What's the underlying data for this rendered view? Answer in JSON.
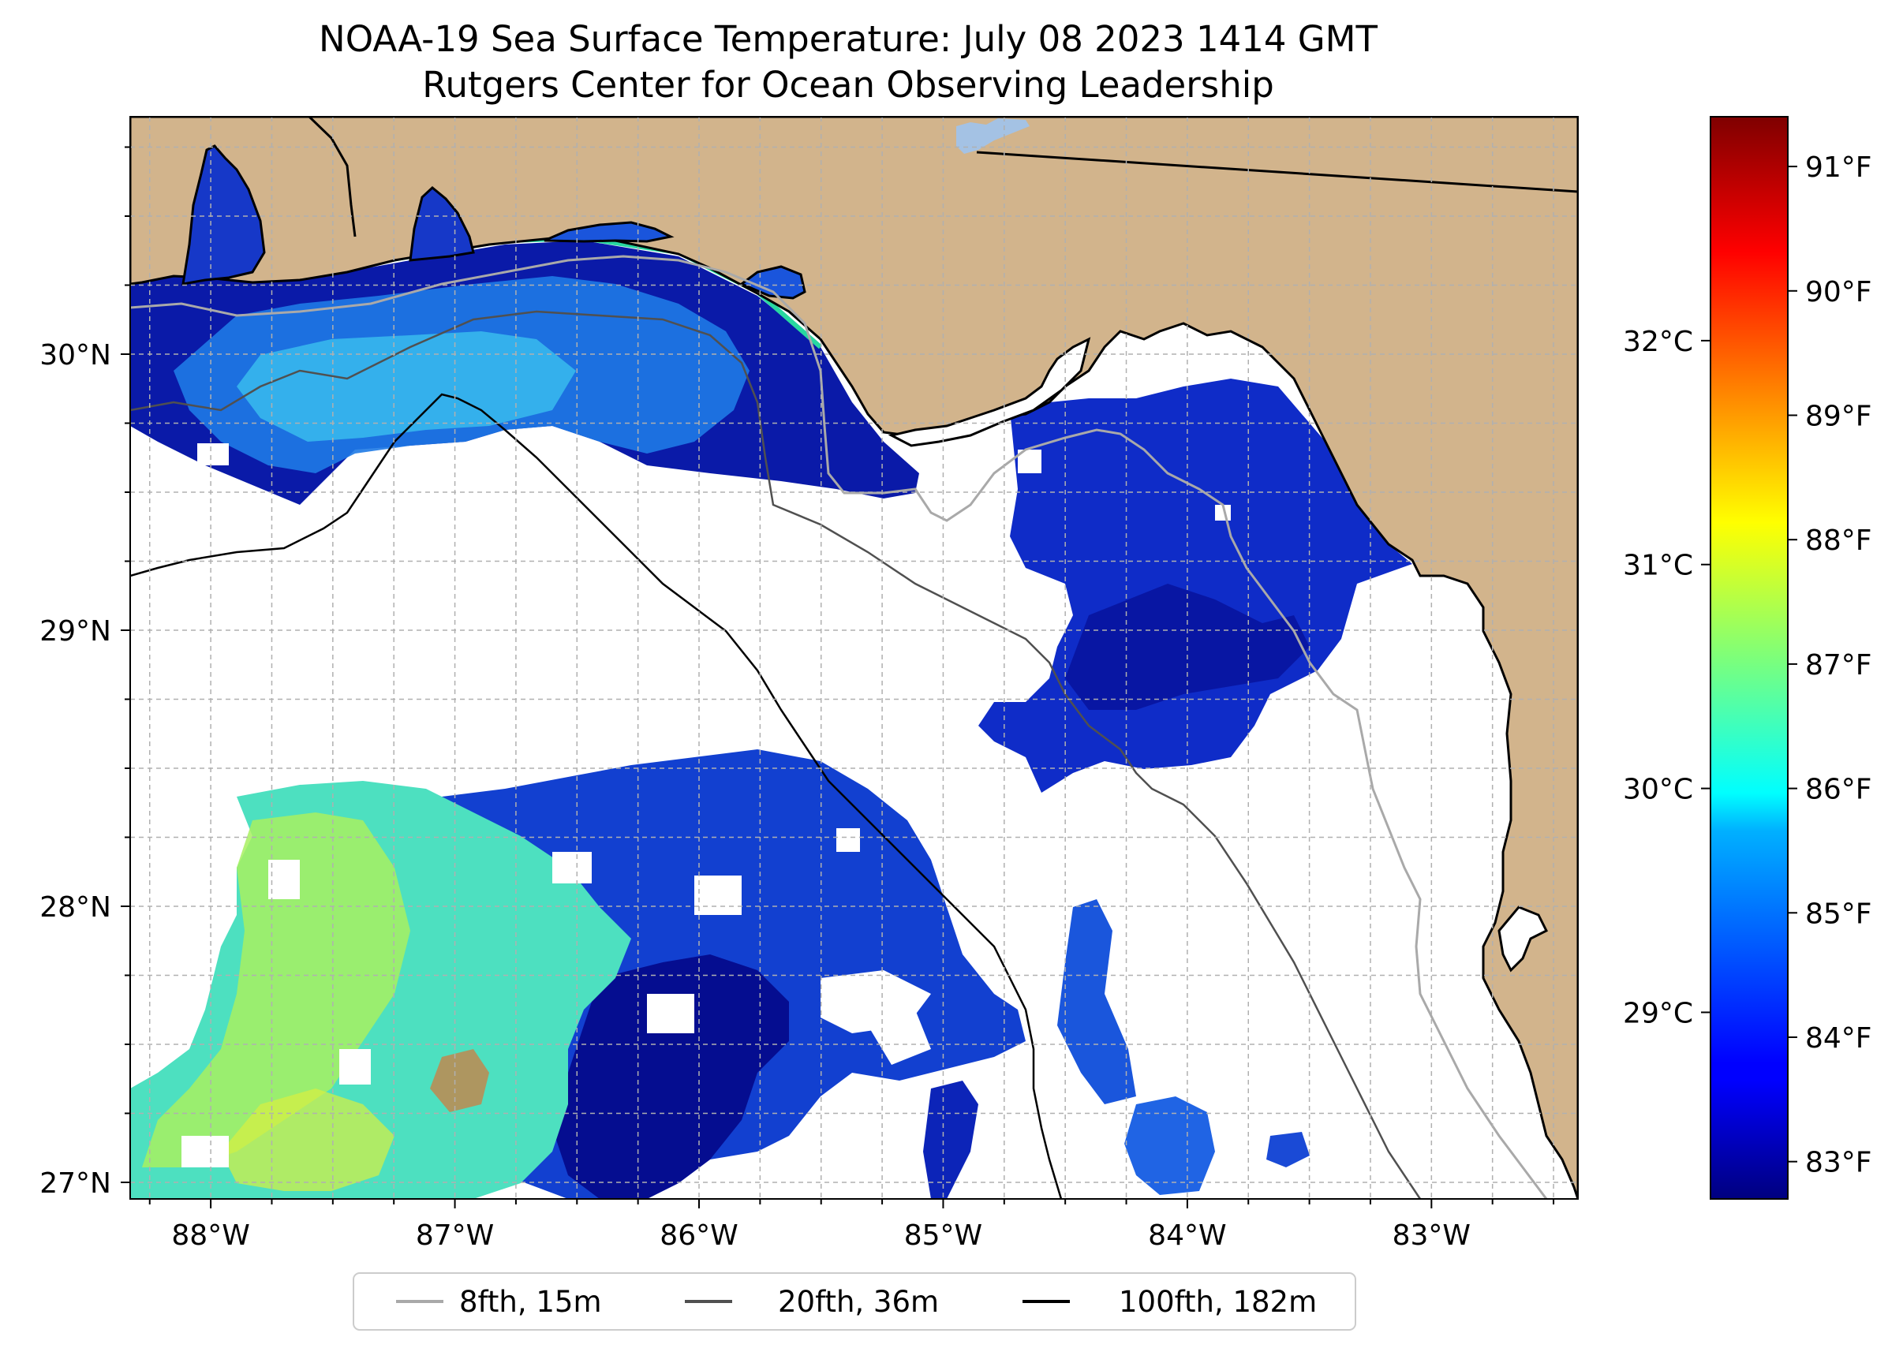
{
  "title": {
    "line1": "NOAA-19 Sea Surface Temperature: July 08 2023 1414 GMT",
    "line2": "Rutgers Center for Ocean Observing Leadership"
  },
  "map": {
    "lon_range": [
      -88.33,
      -82.4
    ],
    "lat_range": [
      26.94,
      30.86
    ],
    "x_ticks": [
      {
        "lon": -88,
        "label": "88°W"
      },
      {
        "lon": -87,
        "label": "87°W"
      },
      {
        "lon": -86,
        "label": "86°W"
      },
      {
        "lon": -85,
        "label": "85°W"
      },
      {
        "lon": -84,
        "label": "84°W"
      },
      {
        "lon": -83,
        "label": "83°W"
      }
    ],
    "y_ticks": [
      {
        "lat": 27,
        "label": "27°N"
      },
      {
        "lat": 28,
        "label": "28°N"
      },
      {
        "lat": 29,
        "label": "29°N"
      },
      {
        "lat": 30,
        "label": "30°N"
      }
    ],
    "gridlines": "dashed every 0.25°",
    "colors": {
      "land": "#d2b48c",
      "no_data": "#ffffff",
      "lake": "#a4c2e4",
      "grid": "#b0b0b0"
    }
  },
  "colorbar": {
    "colormap": "jet",
    "fahrenheit_ticks": [
      {
        "value": 83,
        "label": "83°F"
      },
      {
        "value": 84,
        "label": "84°F"
      },
      {
        "value": 85,
        "label": "85°F"
      },
      {
        "value": 86,
        "label": "86°F"
      },
      {
        "value": 87,
        "label": "87°F"
      },
      {
        "value": 88,
        "label": "88°F"
      },
      {
        "value": 89,
        "label": "89°F"
      },
      {
        "value": 90,
        "label": "90°F"
      },
      {
        "value": 91,
        "label": "91°F"
      }
    ],
    "celsius_ticks": [
      {
        "value": 29,
        "label": "29°C"
      },
      {
        "value": 30,
        "label": "30°C"
      },
      {
        "value": 31,
        "label": "31°C"
      },
      {
        "value": 32,
        "label": "32°C"
      }
    ],
    "range_f": [
      82.7,
      91.4
    ]
  },
  "legend": {
    "items": [
      {
        "label": "8fth, 15m",
        "color": "#a9a9a9"
      },
      {
        "label": "20fth, 36m",
        "color": "#505050"
      },
      {
        "label": "100fth, 182m",
        "color": "#000000"
      }
    ]
  }
}
